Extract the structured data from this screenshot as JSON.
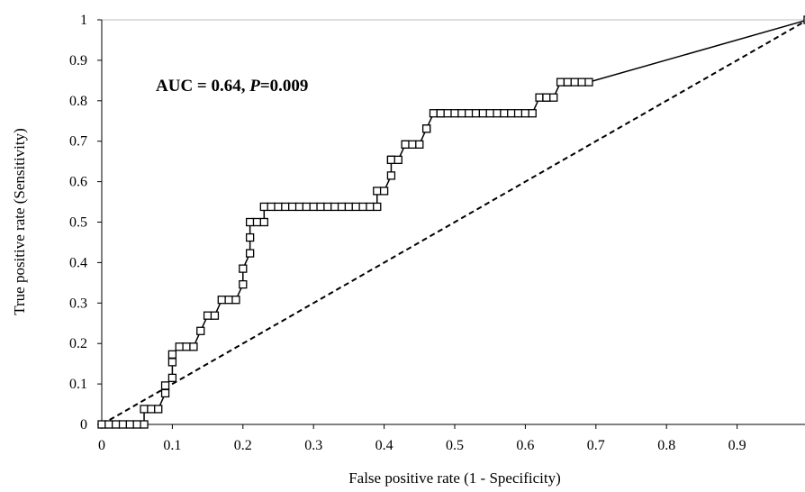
{
  "chart_data": {
    "type": "line",
    "xlabel": "False positive rate (1 - Specificity)",
    "ylabel": "True positive rate (Sensitivity)",
    "xlim": [
      0,
      1
    ],
    "ylim": [
      0,
      1
    ],
    "x_ticks": [
      "0",
      "0.1",
      "0.2",
      "0.3",
      "0.4",
      "0.5",
      "0.6",
      "0.7",
      "0.8",
      "0.9",
      "1"
    ],
    "y_ticks": [
      "0",
      "0.1",
      "0.2",
      "0.3",
      "0.4",
      "0.5",
      "0.6",
      "0.7",
      "0.8",
      "0.9",
      "1"
    ],
    "grid": "horizontal top line only",
    "legend": "none",
    "annotation": {
      "prefix": "AUC = 0.64, ",
      "p_label": "P",
      "suffix": "=0.009"
    },
    "series": [
      {
        "style": "solid line with square markers",
        "color": "#000000",
        "x": [
          0,
          0.01,
          0.02,
          0.03,
          0.04,
          0.05,
          0.06,
          0.06,
          0.07,
          0.08,
          0.09,
          0.09,
          0.1,
          0.1,
          0.1,
          0.11,
          0.12,
          0.13,
          0.14,
          0.15,
          0.16,
          0.17,
          0.18,
          0.19,
          0.2,
          0.2,
          0.21,
          0.21,
          0.21,
          0.22,
          0.23,
          0.23,
          0.24,
          0.25,
          0.26,
          0.27,
          0.28,
          0.29,
          0.3,
          0.31,
          0.32,
          0.33,
          0.34,
          0.35,
          0.36,
          0.37,
          0.38,
          0.39,
          0.39,
          0.4,
          0.41,
          0.41,
          0.41,
          0.42,
          0.43,
          0.43,
          0.44,
          0.45,
          0.46,
          0.46,
          0.47,
          0.48,
          0.48,
          0.49,
          0.5,
          0.51,
          0.52,
          0.53,
          0.54,
          0.55,
          0.56,
          0.57,
          0.58,
          0.59,
          0.6,
          0.61,
          0.62,
          0.63,
          0.63,
          0.64,
          0.65,
          0.66,
          0.66,
          0.67,
          0.68,
          0.69,
          1.0
        ],
        "y": [
          0,
          0,
          0,
          0,
          0,
          0,
          0,
          0.038,
          0.038,
          0.038,
          0.077,
          0.096,
          0.115,
          0.154,
          0.173,
          0.192,
          0.192,
          0.192,
          0.231,
          0.269,
          0.269,
          0.308,
          0.308,
          0.308,
          0.346,
          0.385,
          0.423,
          0.462,
          0.5,
          0.5,
          0.5,
          0.538,
          0.538,
          0.538,
          0.538,
          0.538,
          0.538,
          0.538,
          0.538,
          0.538,
          0.538,
          0.538,
          0.538,
          0.538,
          0.538,
          0.538,
          0.538,
          0.538,
          0.577,
          0.577,
          0.615,
          0.654,
          0.654,
          0.654,
          0.692,
          0.692,
          0.692,
          0.692,
          0.731,
          0.731,
          0.769,
          0.769,
          0.769,
          0.769,
          0.769,
          0.769,
          0.769,
          0.769,
          0.769,
          0.769,
          0.769,
          0.769,
          0.769,
          0.769,
          0.769,
          0.769,
          0.808,
          0.808,
          0.808,
          0.808,
          0.846,
          0.846,
          0.846,
          0.846,
          0.846,
          0.846,
          1.0
        ]
      },
      {
        "style": "dashed reference line",
        "color": "#000000",
        "x": [
          0,
          1
        ],
        "y": [
          0,
          1
        ]
      }
    ]
  }
}
